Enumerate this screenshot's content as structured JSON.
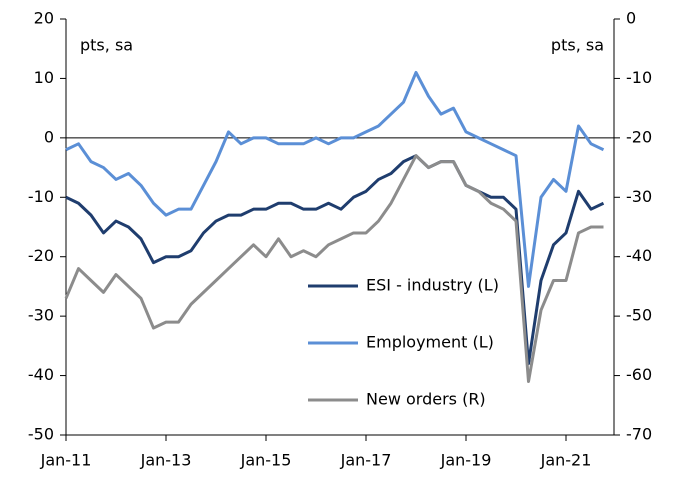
{
  "chart_data": {
    "type": "line",
    "categories": [
      "Jan-11",
      null,
      null,
      null,
      null,
      null,
      null,
      null,
      "Jan-13",
      null,
      null,
      null,
      null,
      null,
      null,
      null,
      "Jan-15",
      null,
      null,
      null,
      null,
      null,
      null,
      null,
      "Jan-17",
      null,
      null,
      null,
      null,
      null,
      null,
      null,
      "Jan-19",
      null,
      null,
      null,
      null,
      null,
      null,
      null,
      "Jan-21",
      null,
      null,
      null
    ],
    "series": [
      {
        "name": "ESI - industry (L)",
        "color": "#1f3d6e",
        "values": [
          -10,
          -11,
          -13,
          -16,
          -14,
          -15,
          -17,
          -21,
          -20,
          -20,
          -19,
          -16,
          -14,
          -13,
          -13,
          -12,
          -12,
          -11,
          -11,
          -12,
          -12,
          -11,
          -12,
          -10,
          -9,
          -7,
          -6,
          -4,
          -3,
          -5,
          -4,
          -4,
          -8,
          -9,
          -10,
          -10,
          -12,
          -38,
          -24,
          -18,
          -16,
          -9,
          -12,
          -11
        ]
      },
      {
        "name": "Employment (L)",
        "color": "#5b8fd6",
        "values": [
          -2,
          -1,
          -4,
          -5,
          -7,
          -6,
          -8,
          -11,
          -13,
          -12,
          -12,
          -8,
          -4,
          1,
          -1,
          0,
          0,
          -1,
          -1,
          -1,
          0,
          -1,
          0,
          0,
          1,
          2,
          4,
          6,
          11,
          7,
          4,
          5,
          1,
          0,
          -1,
          -2,
          -3,
          -25,
          -10,
          -7,
          -9,
          2,
          -1,
          -2
        ]
      },
      {
        "name": "New orders (R)",
        "color": "#8c8c8c",
        "axis": "y2",
        "values": [
          -47,
          -42,
          -44,
          -46,
          -43,
          -45,
          -47,
          -52,
          -51,
          -51,
          -48,
          -46,
          -44,
          -42,
          -40,
          -38,
          -40,
          -37,
          -40,
          -39,
          -40,
          -38,
          -37,
          -36,
          -36,
          -34,
          -31,
          -27,
          -23,
          -25,
          -24,
          -24,
          -28,
          -29,
          -31,
          -32,
          -34,
          -61,
          -49,
          -44,
          -44,
          -36,
          -35,
          -35
        ]
      }
    ],
    "ylim": [
      -50,
      20
    ],
    "yticks": [
      -50,
      -40,
      -30,
      -20,
      -10,
      0,
      10,
      20
    ],
    "y2lim": [
      -70,
      0
    ],
    "y2ticks": [
      -70,
      -60,
      -50,
      -40,
      -30,
      -20,
      -10,
      0
    ],
    "ylabel": "pts, sa",
    "y2label": "pts, sa"
  }
}
